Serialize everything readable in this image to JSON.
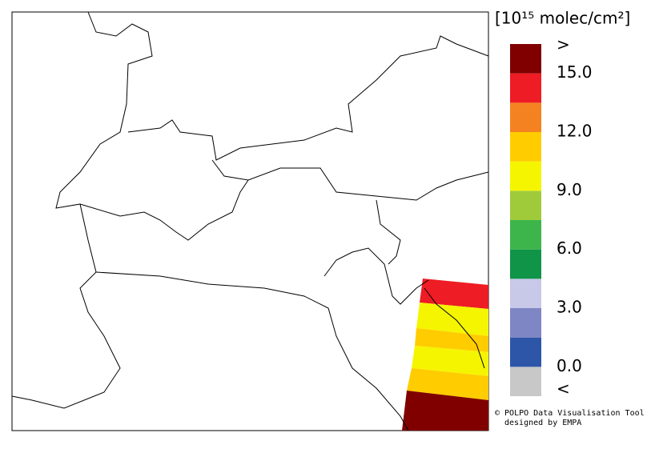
{
  "legend": {
    "title": "[10¹⁵ molec/cm²]",
    "colors": [
      "#c8c8c8",
      "#2e56a8",
      "#7f86c4",
      "#c8c8e8",
      "#0f9448",
      "#3db54a",
      "#9fcb3b",
      "#f5f500",
      "#ffcc00",
      "#f58220",
      "#ee1c24",
      "#800000"
    ],
    "ticks": [
      {
        "value": 0,
        "label": "0.0"
      },
      {
        "value": 3,
        "label": "3.0"
      },
      {
        "value": 6,
        "label": "6.0"
      },
      {
        "value": 9,
        "label": "9.0"
      },
      {
        "value": 12,
        "label": "12.0"
      },
      {
        "value": 15,
        "label": "15.0"
      }
    ],
    "under_label": "<",
    "over_label": ">"
  },
  "credit": [
    "© POLPO Data Visualisation Tool",
    "designed by EMPA"
  ]
}
